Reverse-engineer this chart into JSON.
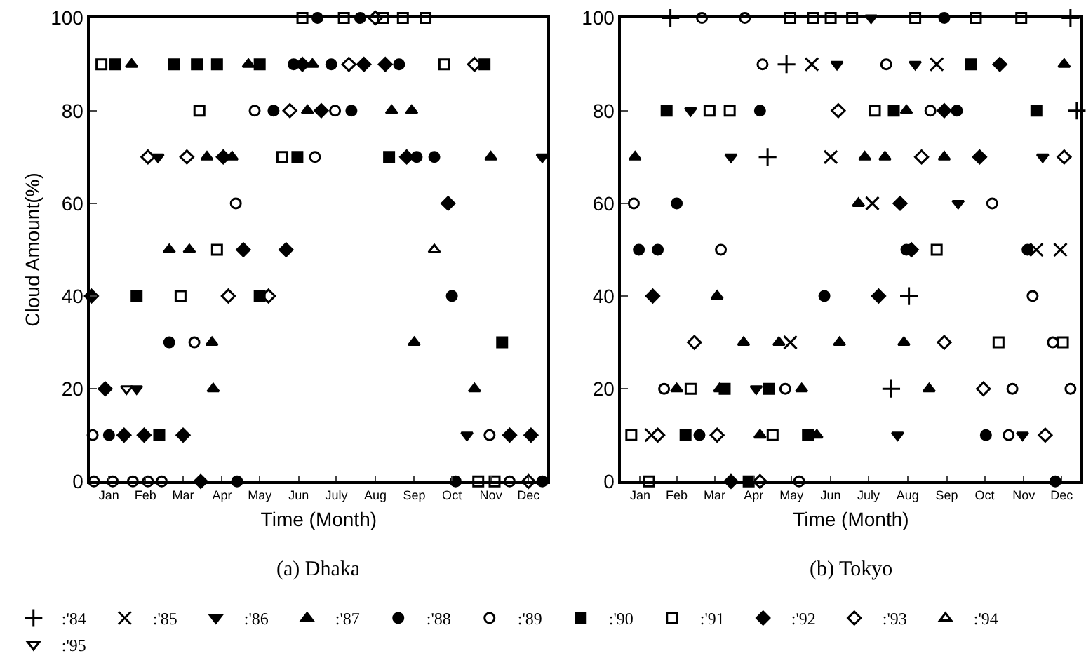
{
  "chart_data": [
    {
      "type": "scatter",
      "title": "(a) Dhaka",
      "xlabel": "Time (Month)",
      "ylabel": "Cloud Amount(%)",
      "xlim": [
        "--01-01",
        "--12-31"
      ],
      "xticks": [
        {
          "value": "--01-16",
          "label": "Jan"
        },
        {
          "value": "--02-14",
          "label": "Feb"
        },
        {
          "value": "--03-16",
          "label": "Mar"
        },
        {
          "value": "--04-16",
          "label": "Apr"
        },
        {
          "value": "--05-16",
          "label": "May"
        },
        {
          "value": "--06-16",
          "label": "Jun"
        },
        {
          "value": "--07-16",
          "label": "July"
        },
        {
          "value": "--08-16",
          "label": "Aug"
        },
        {
          "value": "--09-16",
          "label": "Sep"
        },
        {
          "value": "--10-16",
          "label": "Oct"
        },
        {
          "value": "--11-16",
          "label": "Nov"
        },
        {
          "value": "--12-16",
          "label": "Dec"
        }
      ],
      "ylim": [
        0,
        100
      ],
      "yticks": [
        0,
        20,
        40,
        60,
        80,
        100
      ],
      "legend": "bottom",
      "series": [
        {
          "name": ":'86",
          "color": "#000000",
          "marker": "triangle-down",
          "x": [
            "--02-24",
            "--02-07",
            "--12-27",
            "--10-28"
          ],
          "values": [
            70,
            20,
            70,
            10
          ]
        },
        {
          "name": ":'87",
          "color": "#000000",
          "marker": "triangle",
          "x": [
            "--02-03",
            "--05-07",
            "--06-27",
            "--06-23",
            "--08-29",
            "--09-14",
            "--04-04",
            "--04-24",
            "--11-16",
            "--03-05",
            "--03-21",
            "--04-08",
            "--09-16",
            "--04-09",
            "--11-03"
          ],
          "values": [
            90,
            90,
            90,
            80,
            80,
            80,
            70,
            70,
            70,
            50,
            50,
            30,
            30,
            20,
            20
          ]
        },
        {
          "name": ":'88",
          "color": "#000000",
          "marker": "circle",
          "x": [
            "--07-01",
            "--08-04",
            "--06-12",
            "--07-12",
            "--09-04",
            "--05-27",
            "--07-28",
            "--09-18",
            "--10-02",
            "--10-16",
            "--03-05",
            "--01-16",
            "--04-28",
            "--10-19",
            "--12-27"
          ],
          "values": [
            100,
            100,
            90,
            90,
            90,
            80,
            80,
            70,
            70,
            40,
            30,
            10,
            0,
            0,
            0
          ]
        },
        {
          "name": ":'89",
          "color": "#000000",
          "marker": "circle-open",
          "x": [
            "--07-15",
            "--05-12",
            "--06-29",
            "--04-27",
            "--03-25",
            "--01-03",
            "--11-15",
            "--01-04",
            "--01-19",
            "--02-04",
            "--02-16",
            "--02-27",
            "--12-01"
          ],
          "values": [
            80,
            80,
            70,
            60,
            30,
            10,
            10,
            0,
            0,
            0,
            0,
            0,
            0
          ]
        },
        {
          "name": ":'90",
          "color": "#000000",
          "marker": "square",
          "x": [
            "--01-21",
            "--03-09",
            "--03-27",
            "--04-12",
            "--05-16",
            "--11-11",
            "--06-15",
            "--08-27",
            "--02-07",
            "--05-16",
            "--11-25",
            "--02-25"
          ],
          "values": [
            90,
            90,
            90,
            90,
            90,
            90,
            70,
            70,
            40,
            40,
            30,
            10
          ]
        },
        {
          "name": ":'91",
          "color": "#000000",
          "marker": "square-open",
          "x": [
            "--06-19",
            "--07-22",
            "--08-22",
            "--09-07",
            "--09-25",
            "--01-10",
            "--10-10",
            "--03-29",
            "--06-03",
            "--04-12",
            "--03-14",
            "--11-06",
            "--11-19"
          ],
          "values": [
            100,
            100,
            100,
            100,
            100,
            90,
            90,
            80,
            70,
            50,
            40,
            0,
            0
          ]
        },
        {
          "name": ":'92",
          "color": "#000000",
          "marker": "diamond",
          "x": [
            "--06-19",
            "--08-07",
            "--08-24",
            "--07-04",
            "--04-17",
            "--09-10",
            "--10-13",
            "--05-03",
            "--06-06",
            "--01-02",
            "--01-13",
            "--01-28",
            "--02-13",
            "--03-16",
            "--12-01",
            "--12-18",
            "--03-30"
          ],
          "values": [
            90,
            90,
            90,
            80,
            70,
            70,
            60,
            50,
            50,
            40,
            20,
            10,
            10,
            10,
            10,
            10,
            0
          ]
        },
        {
          "name": ":'93",
          "color": "#000000",
          "marker": "diamond-open",
          "x": [
            "--08-16",
            "--07-26",
            "--11-03",
            "--06-09",
            "--02-16",
            "--03-19",
            "--04-21",
            "--05-23",
            "--12-16"
          ],
          "values": [
            100,
            90,
            90,
            80,
            70,
            70,
            40,
            40,
            0
          ]
        },
        {
          "name": ":'94",
          "color": "#000000",
          "marker": "triangle-open",
          "x": [
            "--10-02"
          ],
          "values": [
            50
          ]
        },
        {
          "name": ":'95",
          "color": "#000000",
          "marker": "triangle-down-open",
          "x": [
            "--01-30"
          ],
          "values": [
            20
          ]
        }
      ]
    },
    {
      "type": "scatter",
      "title": "(b) Tokyo",
      "xlabel": "Time (Month)",
      "xlim": [
        "--01-01",
        "--12-31"
      ],
      "xticks": [
        {
          "value": "--01-16",
          "label": "Jan"
        },
        {
          "value": "--02-14",
          "label": "Feb"
        },
        {
          "value": "--03-16",
          "label": "Mar"
        },
        {
          "value": "--04-16",
          "label": "Apr"
        },
        {
          "value": "--05-16",
          "label": "May"
        },
        {
          "value": "--06-16",
          "label": "Jun"
        },
        {
          "value": "--07-16",
          "label": "July"
        },
        {
          "value": "--08-16",
          "label": "Aug"
        },
        {
          "value": "--09-16",
          "label": "Sep"
        },
        {
          "value": "--10-16",
          "label": "Oct"
        },
        {
          "value": "--11-16",
          "label": "Nov"
        },
        {
          "value": "--12-16",
          "label": "Dec"
        }
      ],
      "ylim": [
        0,
        100
      ],
      "yticks": [
        0,
        20,
        40,
        60,
        80,
        100
      ],
      "legend": "bottom",
      "series": [
        {
          "name": ":'84",
          "color": "#000000",
          "marker": "cross",
          "x": [
            "--02-09",
            "--12-23",
            "--05-12",
            "--12-28",
            "--04-27",
            "--08-17",
            "--08-03"
          ],
          "values": [
            100,
            100,
            90,
            80,
            70,
            40,
            20
          ]
        },
        {
          "name": ":'85",
          "color": "#000000",
          "marker": "x",
          "x": [
            "--06-01",
            "--09-08",
            "--06-16",
            "--07-19",
            "--11-26",
            "--12-15",
            "--05-15",
            "--01-25"
          ],
          "values": [
            90,
            90,
            70,
            60,
            50,
            50,
            30,
            10
          ]
        },
        {
          "name": ":'86",
          "color": "#000000",
          "marker": "triangle-down",
          "x": [
            "--07-18",
            "--06-21",
            "--08-22",
            "--02-25",
            "--03-29",
            "--12-01",
            "--09-25",
            "--04-18",
            "--08-08",
            "--11-15"
          ],
          "values": [
            100,
            90,
            90,
            80,
            70,
            70,
            60,
            20,
            10,
            10
          ]
        },
        {
          "name": ":'87",
          "color": "#000000",
          "marker": "triangle",
          "x": [
            "--12-18",
            "--08-15",
            "--01-12",
            "--07-13",
            "--07-29",
            "--09-14",
            "--07-08",
            "--03-18",
            "--04-08",
            "--05-06",
            "--06-23",
            "--08-13",
            "--02-14",
            "--03-20",
            "--05-24",
            "--09-02",
            "--04-21",
            "--06-05"
          ],
          "values": [
            90,
            80,
            70,
            70,
            70,
            70,
            60,
            40,
            30,
            30,
            30,
            30,
            20,
            20,
            20,
            20,
            10,
            10
          ]
        },
        {
          "name": ":'88",
          "color": "#000000",
          "marker": "circle",
          "x": [
            "--09-14",
            "--10-17",
            "--04-21",
            "--09-24",
            "--02-14",
            "--01-15",
            "--01-30",
            "--08-15",
            "--11-19",
            "--06-11",
            "--03-04",
            "--12-11"
          ],
          "values": [
            100,
            10,
            80,
            80,
            60,
            50,
            50,
            50,
            50,
            40,
            10,
            0
          ]
        },
        {
          "name": ":'89",
          "color": "#000000",
          "marker": "circle-open",
          "x": [
            "--03-06",
            "--04-09",
            "--04-23",
            "--07-30",
            "--09-03",
            "--01-11",
            "--10-22",
            "--03-21",
            "--11-23",
            "--12-09",
            "--02-04",
            "--05-11",
            "--11-07",
            "--12-23",
            "--11-04",
            "--05-22"
          ],
          "values": [
            100,
            100,
            90,
            90,
            80,
            60,
            60,
            50,
            40,
            30,
            20,
            20,
            20,
            20,
            10,
            0
          ]
        },
        {
          "name": ":'90",
          "color": "#000000",
          "marker": "square",
          "x": [
            "--10-05",
            "--02-06",
            "--08-05",
            "--11-26",
            "--03-24",
            "--04-28",
            "--02-21",
            "--05-29",
            "--04-12"
          ],
          "values": [
            90,
            80,
            80,
            80,
            20,
            20,
            10,
            10,
            0
          ]
        },
        {
          "name": ":'91",
          "color": "#000000",
          "marker": "square-open",
          "x": [
            "--05-15",
            "--06-02",
            "--06-16",
            "--07-03",
            "--08-22",
            "--10-09",
            "--11-14",
            "--03-12",
            "--03-28",
            "--07-21",
            "--09-08",
            "--10-27",
            "--12-17",
            "--02-25",
            "--01-09",
            "--05-01",
            "--01-23"
          ],
          "values": [
            100,
            100,
            100,
            100,
            100,
            100,
            100,
            80,
            80,
            80,
            50,
            30,
            30,
            20,
            10,
            10,
            0
          ]
        },
        {
          "name": ":'92",
          "color": "#000000",
          "marker": "diamond",
          "x": [
            "--10-28",
            "--09-14",
            "--10-12",
            "--08-10",
            "--08-19",
            "--01-26",
            "--07-24",
            "--03-29"
          ],
          "values": [
            90,
            80,
            70,
            60,
            50,
            40,
            40,
            0
          ]
        },
        {
          "name": ":'93",
          "color": "#000000",
          "marker": "diamond-open",
          "x": [
            "--06-22",
            "--08-27",
            "--12-18",
            "--02-28",
            "--09-14",
            "--10-15",
            "--01-30",
            "--03-18",
            "--12-03",
            "--04-21"
          ],
          "values": [
            80,
            70,
            70,
            30,
            30,
            20,
            10,
            10,
            10,
            0
          ]
        }
      ]
    }
  ]
}
